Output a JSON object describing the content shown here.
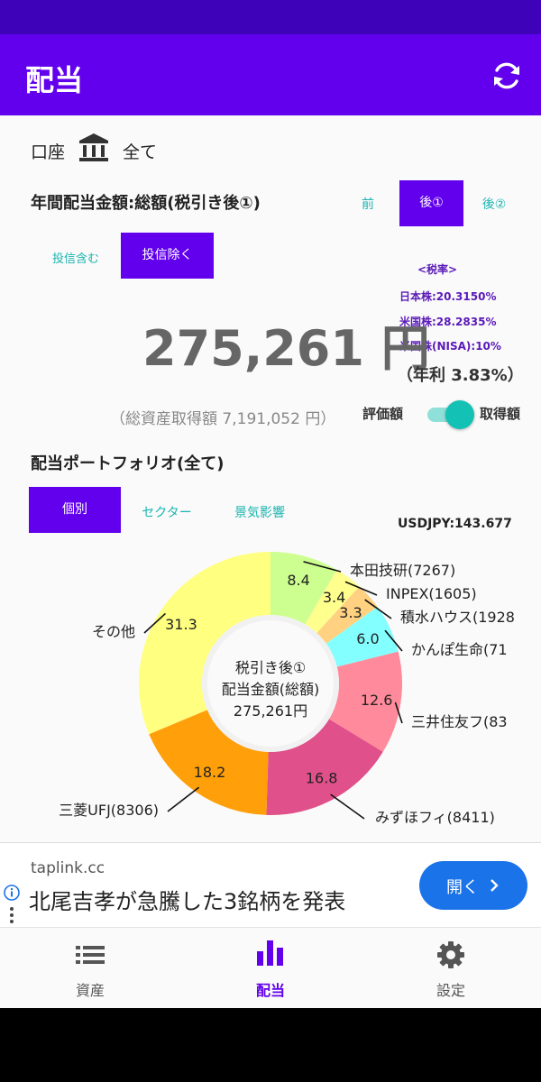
{
  "app_bar": {
    "title": "配当"
  },
  "account": {
    "label": "口座",
    "value": "全て"
  },
  "annual": {
    "heading": "年間配当金額:総額(税引き後①)",
    "tabs": [
      "前",
      "後①",
      "後②"
    ],
    "selected_tab": "後①"
  },
  "fund_filter": {
    "options": [
      "投信含む",
      "投信除く"
    ],
    "selected": "投信除く"
  },
  "tax": {
    "title": "<税率>",
    "japan": "日本株:20.3150%",
    "us": "米国株:28.2835%",
    "us_nisa": "米国株(NISA):10%"
  },
  "amount": {
    "value": "275,261 円",
    "yield": "（年利 3.83%）"
  },
  "total_assets": "（総資産取得額 7,191,052 円）",
  "toggle": {
    "left_label": "評価額",
    "right_label": "取得額",
    "state": "取得額"
  },
  "portfolio": {
    "heading": "配当ポートフォリオ(全て)",
    "tabs": [
      "個別",
      "セクター",
      "景気影響"
    ],
    "selected_tab": "個別",
    "fx": "USDJPY:143.677"
  },
  "chart_data": {
    "type": "pie",
    "center_lines": [
      "税引き後①",
      "配当金額(総額)",
      "275,261円"
    ],
    "slices": [
      {
        "label": "本田技研(7267)",
        "value": 8.4,
        "color": "#ccff90"
      },
      {
        "label": "INPEX(1605)",
        "value": 3.4,
        "color": "#ffff8d"
      },
      {
        "label": "積水ハウス(1928",
        "value": 3.3,
        "color": "#ffd180"
      },
      {
        "label": "かんぽ生命(71",
        "value": 6.0,
        "color": "#84ffff"
      },
      {
        "label": "三井住友フ(83",
        "value": 12.6,
        "color": "#ff8a9b"
      },
      {
        "label": "みずほフィ(8411)",
        "value": 16.8,
        "color": "#e0508a"
      },
      {
        "label": "三菱UFJ(8306)",
        "value": 18.2,
        "color": "#ff9f0a"
      },
      {
        "label": "その他",
        "value": 31.3,
        "color": "#ffff80"
      }
    ]
  },
  "ad": {
    "domain": "taplink.cc",
    "text": "北尾吉孝が急騰した3銘柄を発表",
    "button": "開く",
    "accent": "#1a73e8"
  },
  "bottom_nav": {
    "items": [
      {
        "label": "資産",
        "icon": "list-icon"
      },
      {
        "label": "配当",
        "icon": "bar-chart-icon"
      },
      {
        "label": "設定",
        "icon": "gear-icon"
      }
    ],
    "active": "配当"
  },
  "colors": {
    "primary": "#6200ee",
    "teal": "#1bb5b0",
    "status_bar": "#3e03b8"
  }
}
